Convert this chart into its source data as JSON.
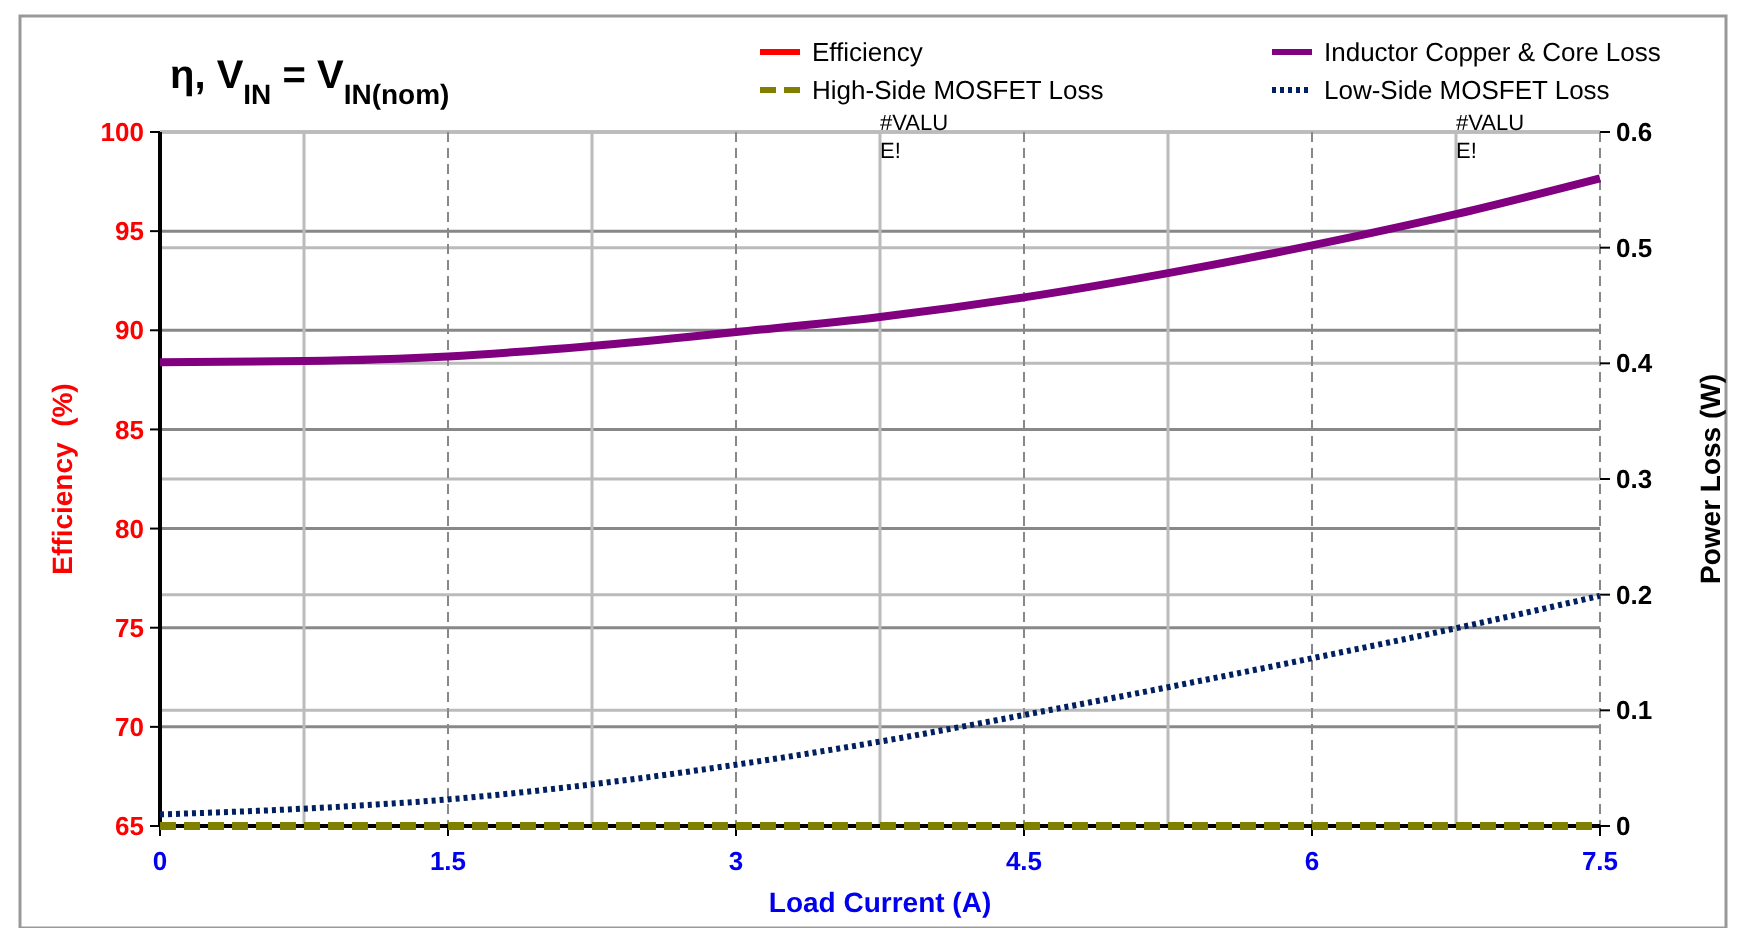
{
  "chart_data": {
    "type": "line",
    "title": "η, V$_{IN}$ = V$_{IN(nom)}$",
    "xlabel": "Load Current (A)",
    "ylabel": "Efficiency  (%)",
    "y2label": "Power Loss (W)",
    "x": [
      0,
      0.75,
      1.5,
      2.25,
      3,
      3.75,
      4.5,
      5.25,
      6,
      6.75,
      7.5
    ],
    "series": [
      {
        "name": "Efficiency",
        "color": "#ff0000",
        "line_style": "solid",
        "values": [
          null,
          null,
          null,
          null,
          null,
          null,
          null,
          null,
          null,
          null,
          null
        ]
      },
      {
        "name": "High-Side MOSFET Loss",
        "color": "#808000",
        "line_style": "dashed",
        "axis": "y2",
        "values": [
          0,
          0,
          0,
          0,
          0,
          0,
          0,
          0,
          0,
          0,
          0
        ]
      },
      {
        "name": "Inductor Copper & Core Loss",
        "color": "#800080",
        "line_style": "solid",
        "axis": "y2",
        "values": [
          0.401,
          0.402,
          0.406,
          0.415,
          0.427,
          0.44,
          0.457,
          0.478,
          0.502,
          0.529,
          0.56
        ]
      },
      {
        "name": "Low-Side MOSFET Loss",
        "color": "#002060",
        "line_style": "dotted",
        "axis": "y2",
        "values": [
          0.01,
          0.015,
          0.023,
          0.036,
          0.053,
          0.073,
          0.096,
          0.12,
          0.145,
          0.171,
          0.199
        ]
      }
    ],
    "xlim": [
      0,
      7.5
    ],
    "xticks": [
      0,
      1.5,
      3,
      4.5,
      6,
      7.5
    ],
    "ylim": [
      65,
      100
    ],
    "yticks": [
      65,
      70,
      75,
      80,
      85,
      90,
      95,
      100
    ],
    "y2lim": [
      0,
      0.6
    ],
    "y2ticks": [
      0,
      0.1,
      0.2,
      0.3,
      0.4,
      0.5,
      0.6
    ],
    "annotations": [
      "#VALUE!",
      "#VALUE!"
    ],
    "grid": true,
    "legend": "top right"
  }
}
